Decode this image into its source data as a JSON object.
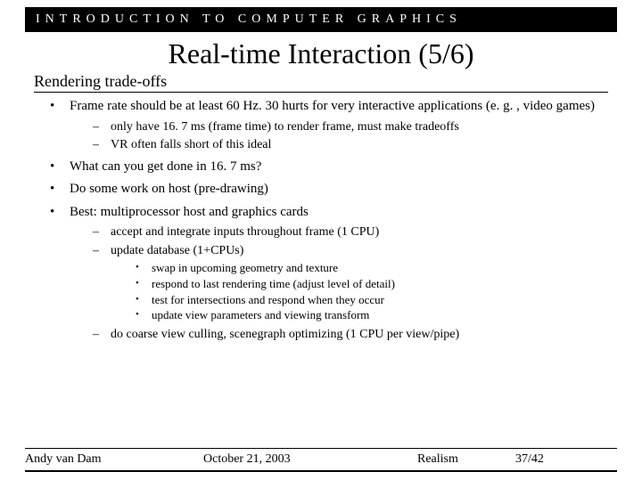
{
  "header": "INTRODUCTION TO COMPUTER GRAPHICS",
  "title": "Real-time Interaction (5/6)",
  "subtitle": "Rendering trade-offs",
  "b1": "Frame rate should be at least 60 Hz. 30 hurts for very interactive applications (e. g. , video games)",
  "b1s1": "only have 16. 7 ms (frame time) to render frame, must make tradeoffs",
  "b1s2": "VR often falls short of this ideal",
  "b2": "What can you get done in 16. 7 ms?",
  "b3": "Do some work on host (pre-drawing)",
  "b4": "Best: multiprocessor host and graphics cards",
  "b4s1": "accept and integrate inputs throughout frame (1 CPU)",
  "b4s2": "update database (1+CPUs)",
  "b4s2a": "swap in upcoming geometry and texture",
  "b4s2b": "respond to last rendering time (adjust level of detail)",
  "b4s2c": "test for intersections and respond when they occur",
  "b4s2d": "update view parameters and viewing transform",
  "b4s3": "do coarse view culling, scenegraph optimizing (1 CPU per view/pipe)",
  "footer": {
    "author": "Andy van Dam",
    "date": "October 21, 2003",
    "topic": "Realism",
    "page": "37/42"
  },
  "colors": {
    "bg": "#ffffff",
    "bar": "#000000",
    "text": "#000000"
  }
}
